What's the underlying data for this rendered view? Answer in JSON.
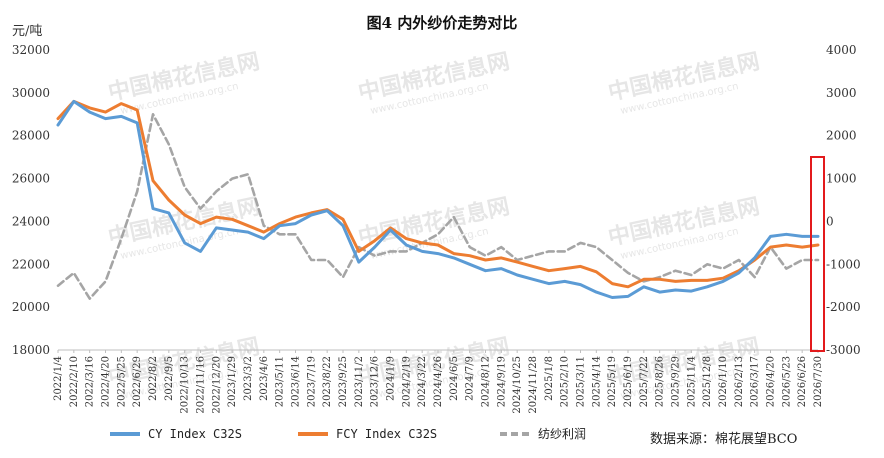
{
  "chart_data": {
    "type": "line",
    "title": "图4 内外纱价走势对比",
    "ylabel": "元/吨",
    "source": "数据来源：棉花展望BCO",
    "watermark": "中国棉花信息网 www.cottonchina.org.cn",
    "ylim_left": [
      18000,
      32000
    ],
    "ylim_right": [
      -3000,
      4000
    ],
    "yticks_left": [
      "18000",
      "20000",
      "22000",
      "24000",
      "26000",
      "28000",
      "30000",
      "32000"
    ],
    "yticks_right": [
      "-3000",
      "-2000",
      "-1000",
      "0",
      "1000",
      "2000",
      "3000",
      "4000"
    ],
    "categories": [
      "2022/1/4",
      "2022/2/10",
      "2022/3/16",
      "2022/4/20",
      "2022/5/25",
      "2022/6/29",
      "2022/8/2",
      "2022/9/5",
      "2022/10/13",
      "2022/11/16",
      "2022/12/20",
      "2023/1/29",
      "2023/3/2",
      "2023/4/6",
      "2023/5/11",
      "2023/6/14",
      "2023/7/19",
      "2023/8/22",
      "2023/9/25",
      "2023/11/2",
      "2023/12/6",
      "2024/1/9",
      "2024/2/19",
      "2024/3/22",
      "2024/4/26",
      "2024/6/5",
      "2024/7/9",
      "2024/8/12",
      "2024/9/19",
      "2024/10/25",
      "2024/11/28",
      "2025/1/8",
      "2025/2/10",
      "2025/3/11",
      "2025/4/14",
      "2025/5/19",
      "2025/6/19",
      "2025/7/22",
      "2025/8/26",
      "2025/9/29",
      "2025/11/4",
      "2025/12/8",
      "2026/1/10",
      "2026/2/13",
      "2026/3/17",
      "2026/4/20",
      "2026/5/23",
      "2026/6/26",
      "2026/7/30"
    ],
    "series": [
      {
        "name": "CY Index C32S",
        "axis": "left",
        "color": "#5b9bd5",
        "dash": false,
        "values": [
          28500,
          29600,
          29100,
          28800,
          28900,
          28600,
          24600,
          24400,
          23000,
          22600,
          23700,
          23600,
          23500,
          23200,
          23800,
          23900,
          24300,
          24500,
          23800,
          22100,
          22800,
          23600,
          22900,
          22600,
          22500,
          22300,
          22000,
          21700,
          21800,
          21500,
          21300,
          21100,
          21200,
          21050,
          20700,
          20450,
          20500,
          20950,
          20700,
          20800,
          20750,
          20950,
          21200,
          21600,
          22300,
          23300,
          23400,
          23300,
          23300
        ]
      },
      {
        "name": "FCY Index C32S",
        "axis": "left",
        "color": "#ed7d31",
        "dash": false,
        "values": [
          28800,
          29600,
          29300,
          29100,
          29500,
          29200,
          25900,
          25000,
          24300,
          23900,
          24200,
          24100,
          23800,
          23500,
          23900,
          24200,
          24400,
          24550,
          24100,
          22600,
          23100,
          23700,
          23200,
          23000,
          22900,
          22500,
          22400,
          22200,
          22300,
          22100,
          21900,
          21700,
          21800,
          21900,
          21650,
          21100,
          20950,
          21300,
          21300,
          21200,
          21250,
          21250,
          21350,
          21700,
          22200,
          22800,
          22900,
          22800,
          22900
        ]
      },
      {
        "name": "纺纱利润",
        "axis": "right",
        "color": "#a5a5a5",
        "dash": true,
        "values": [
          -1500,
          -1200,
          -1800,
          -1400,
          -400,
          700,
          2500,
          1800,
          800,
          300,
          700,
          1000,
          1100,
          -100,
          -300,
          -300,
          -900,
          -900,
          -1300,
          -600,
          -800,
          -700,
          -700,
          -500,
          -300,
          100,
          -600,
          -800,
          -600,
          -900,
          -800,
          -700,
          -700,
          -500,
          -600,
          -900,
          -1200,
          -1400,
          -1300,
          -1150,
          -1250,
          -1000,
          -1100,
          -900,
          -1300,
          -600,
          -1100,
          -900,
          -900
        ]
      }
    ]
  }
}
